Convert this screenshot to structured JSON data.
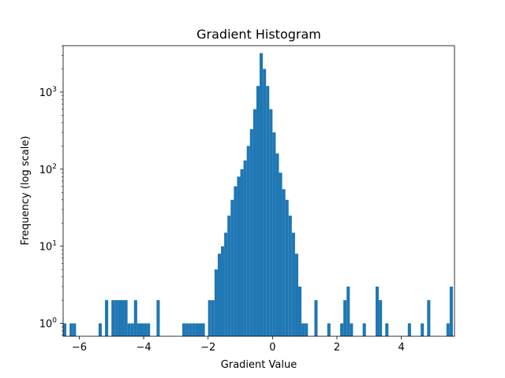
{
  "chart_data": {
    "type": "bar",
    "title": "Gradient Histogram",
    "xlabel": "Gradient Value",
    "ylabel": "Frequency (log scale)",
    "yscale": "log",
    "xlim": [
      -6.5,
      5.65
    ],
    "ylim": [
      0.68,
      4000
    ],
    "grid": false,
    "color": "#1f77b4",
    "x_ticks": [
      -6,
      -4,
      -2,
      0,
      2,
      4
    ],
    "x_tick_labels": [
      "−6",
      "−4",
      "−2",
      "0",
      "2",
      "4"
    ],
    "y_ticks": [
      {
        "value": 1,
        "base": "10",
        "exp": "0"
      },
      {
        "value": 10,
        "base": "10",
        "exp": "1"
      },
      {
        "value": 100,
        "base": "10",
        "exp": "2"
      },
      {
        "value": 1000,
        "base": "10",
        "exp": "3"
      }
    ],
    "bin_start": -6.5,
    "bin_width": 0.1,
    "counts": [
      1,
      0,
      1,
      1,
      0,
      0,
      0,
      0,
      0,
      0,
      0,
      1,
      0,
      2,
      0,
      2,
      2,
      2,
      2,
      2,
      1,
      1,
      2,
      1,
      1,
      1,
      1,
      0,
      0,
      2,
      0,
      0,
      0,
      0,
      0,
      0,
      0,
      1,
      1,
      1,
      1,
      1,
      1,
      1,
      0,
      2,
      2,
      5,
      8,
      10,
      15,
      25,
      40,
      60,
      80,
      100,
      130,
      200,
      330,
      600,
      1200,
      3200,
      2000,
      1200,
      600,
      300,
      160,
      90,
      55,
      40,
      25,
      15,
      8,
      3,
      1,
      1,
      0,
      0,
      2,
      0,
      0,
      0,
      1,
      0,
      0,
      0,
      1,
      2,
      3,
      1,
      0,
      0,
      0,
      1,
      0,
      0,
      0,
      3,
      2,
      0,
      1,
      0,
      0,
      0,
      0,
      0,
      0,
      1,
      0,
      0,
      0,
      1,
      0,
      2,
      0,
      0,
      0,
      0,
      0,
      1,
      3
    ]
  }
}
